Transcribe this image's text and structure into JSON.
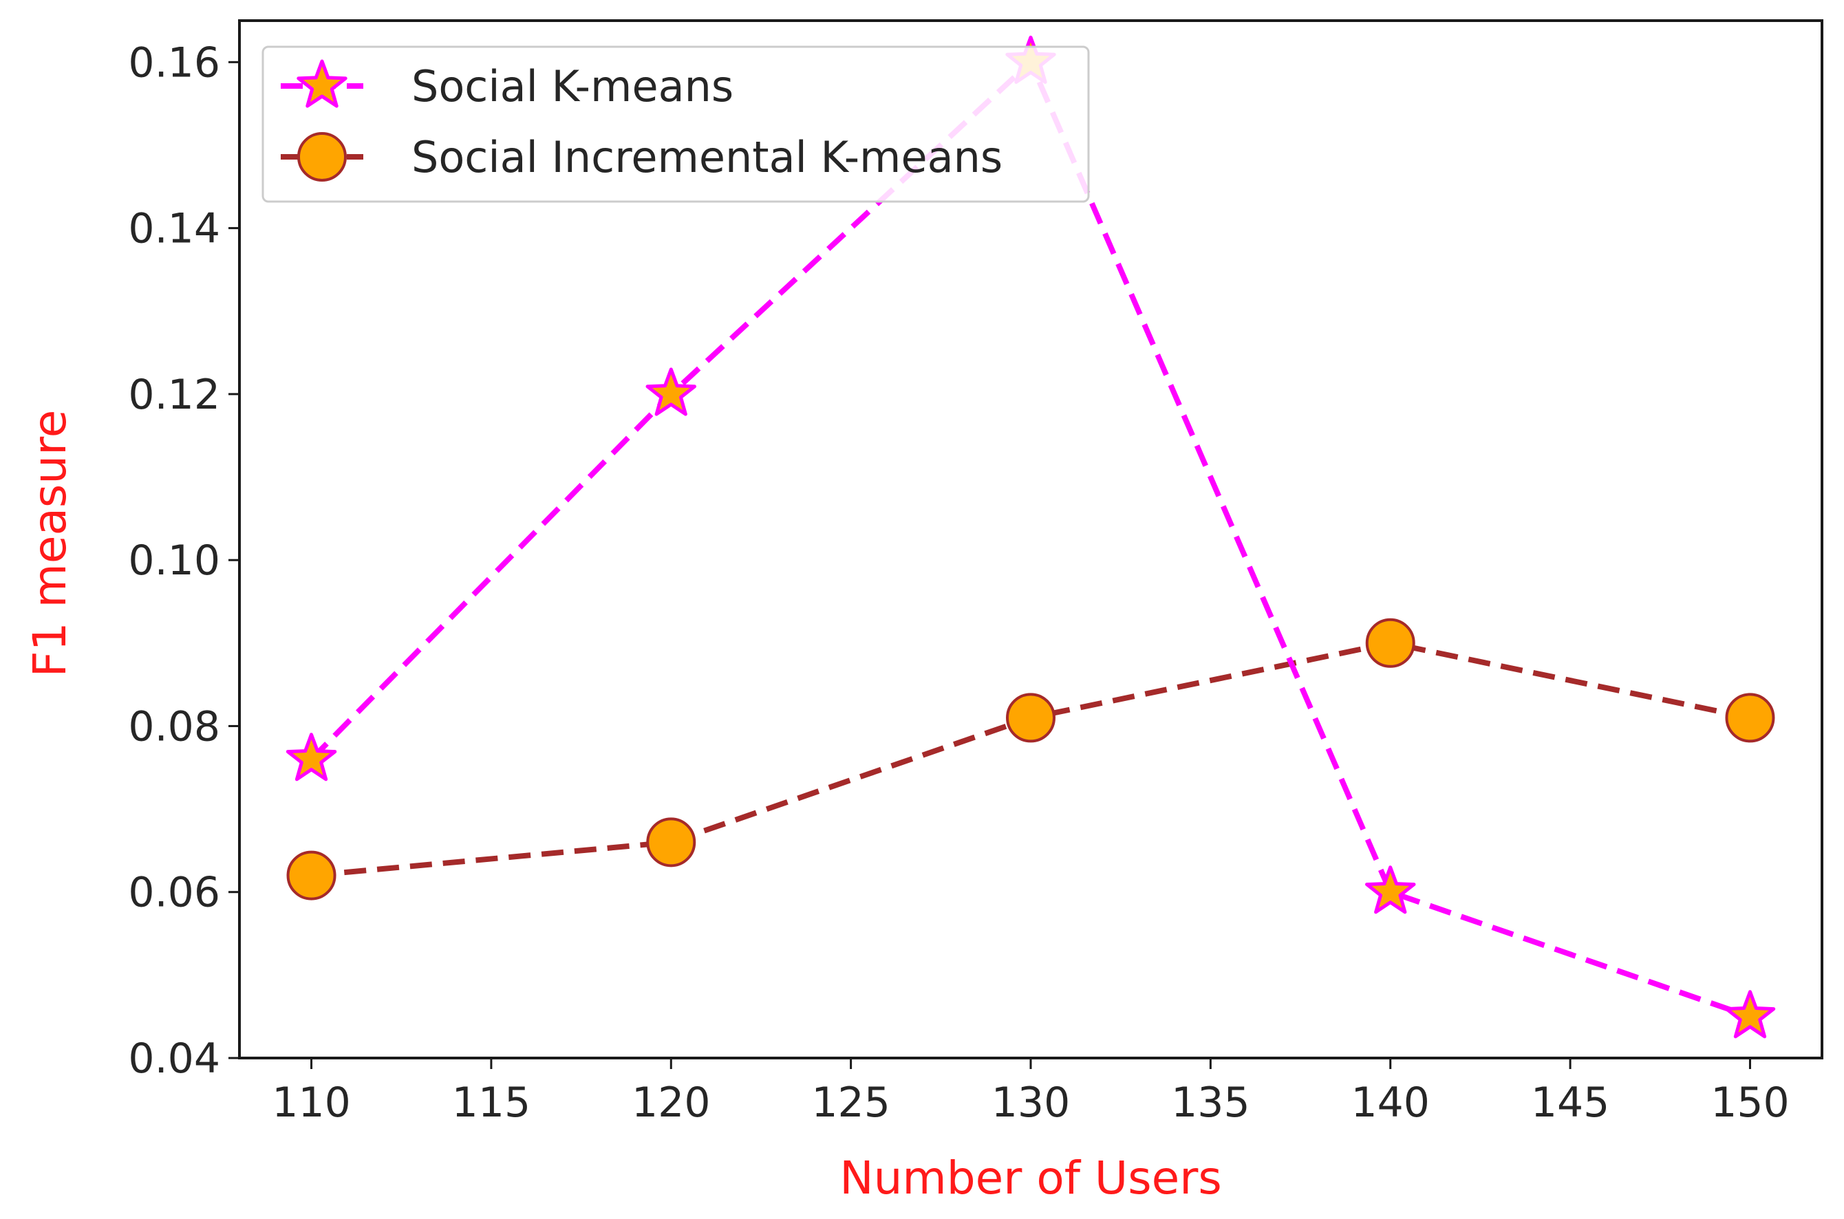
{
  "chart_data": {
    "type": "line",
    "title": "",
    "xlabel": "Number of Users",
    "ylabel": "F1 measure",
    "label_color": "#ff1a1a",
    "x": [
      110,
      120,
      130,
      140,
      150
    ],
    "xlim": [
      108,
      152
    ],
    "ylim": [
      0.04,
      0.165
    ],
    "xticks": [
      "110",
      "115",
      "120",
      "125",
      "130",
      "135",
      "140",
      "145",
      "150"
    ],
    "yticks": [
      "0.04",
      "0.06",
      "0.08",
      "0.10",
      "0.12",
      "0.14",
      "0.16"
    ],
    "grid": false,
    "legend_position": "top-left",
    "series": [
      {
        "name": "Social K-means",
        "values": [
          0.076,
          0.12,
          0.16,
          0.06,
          0.045
        ],
        "line_color": "#ff00ff",
        "line_style": "dashed",
        "marker": "star",
        "marker_face": "#ffa500",
        "marker_edge": "#ff00ff"
      },
      {
        "name": "Social Incremental K-means",
        "values": [
          0.062,
          0.066,
          0.081,
          0.09,
          0.081
        ],
        "line_color": "#a52a2a",
        "line_style": "dashed",
        "marker": "circle",
        "marker_face": "#ffa500",
        "marker_edge": "#a52a2a"
      }
    ]
  }
}
